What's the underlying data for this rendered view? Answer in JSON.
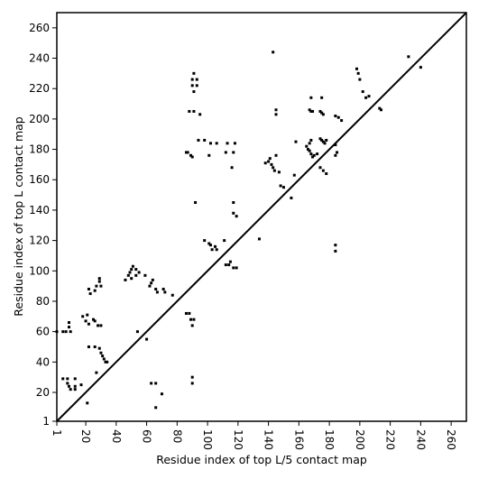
{
  "chart_data": {
    "type": "scatter",
    "title": "",
    "xlabel": "Residue index of top L/5 contact map",
    "ylabel": "Residue index of top L contact map",
    "xlim": [
      1,
      270
    ],
    "ylim": [
      1,
      270
    ],
    "x_ticks": [
      1,
      20,
      40,
      60,
      80,
      100,
      120,
      140,
      160,
      180,
      200,
      220,
      240,
      260
    ],
    "y_ticks": [
      1,
      20,
      40,
      60,
      80,
      100,
      120,
      140,
      160,
      180,
      200,
      220,
      240,
      260
    ],
    "x_tick_rotation": "vertical",
    "grid": false,
    "legend": "none",
    "diagonal": {
      "from": [
        1,
        1
      ],
      "to": [
        270,
        270
      ],
      "color": "#000000"
    },
    "marker": {
      "shape": "square",
      "color": "#000000"
    },
    "series": [
      {
        "points": [
          [
            1,
            60
          ],
          [
            5,
            60
          ],
          [
            7,
            60
          ],
          [
            9,
            63
          ],
          [
            9,
            66
          ],
          [
            10,
            60
          ],
          [
            5,
            29
          ],
          [
            8,
            29
          ],
          [
            8,
            26
          ],
          [
            9,
            24
          ],
          [
            10,
            22
          ],
          [
            13,
            24
          ],
          [
            13,
            22
          ],
          [
            17,
            25
          ],
          [
            13,
            29
          ],
          [
            18,
            70
          ],
          [
            20,
            67
          ],
          [
            21,
            71
          ],
          [
            22,
            65
          ],
          [
            25,
            68
          ],
          [
            22,
            88
          ],
          [
            23,
            85
          ],
          [
            26,
            87
          ],
          [
            27,
            90
          ],
          [
            29,
            93
          ],
          [
            29,
            95
          ],
          [
            30,
            90
          ],
          [
            22,
            50
          ],
          [
            26,
            50
          ],
          [
            26,
            67
          ],
          [
            28,
            64
          ],
          [
            27,
            33
          ],
          [
            29,
            49
          ],
          [
            30,
            46
          ],
          [
            31,
            44
          ],
          [
            32,
            42
          ],
          [
            33,
            40
          ],
          [
            34,
            40
          ],
          [
            30,
            64
          ],
          [
            21,
            13
          ],
          [
            46,
            94
          ],
          [
            48,
            97
          ],
          [
            49,
            99
          ],
          [
            50,
            101
          ],
          [
            51,
            103
          ],
          [
            50,
            95
          ],
          [
            53,
            97
          ],
          [
            55,
            99
          ],
          [
            53,
            101
          ],
          [
            54,
            60
          ],
          [
            59,
            97
          ],
          [
            62,
            90
          ],
          [
            63,
            92
          ],
          [
            64,
            94
          ],
          [
            66,
            88
          ],
          [
            67,
            86
          ],
          [
            71,
            88
          ],
          [
            72,
            86
          ],
          [
            77,
            84
          ],
          [
            60,
            55
          ],
          [
            63,
            26
          ],
          [
            66,
            26
          ],
          [
            66,
            10
          ],
          [
            70,
            19
          ],
          [
            86,
            72
          ],
          [
            88,
            72
          ],
          [
            89,
            68
          ],
          [
            91,
            68
          ],
          [
            90,
            64
          ],
          [
            92,
            145
          ],
          [
            90,
            30
          ],
          [
            90,
            26
          ],
          [
            86,
            178
          ],
          [
            87,
            178
          ],
          [
            89,
            176
          ],
          [
            90,
            175
          ],
          [
            94,
            186
          ],
          [
            98,
            186
          ],
          [
            101,
            176
          ],
          [
            102,
            184
          ],
          [
            106,
            184
          ],
          [
            112,
            178
          ],
          [
            113,
            184
          ],
          [
            117,
            178
          ],
          [
            118,
            184
          ],
          [
            90,
            226
          ],
          [
            91,
            230
          ],
          [
            93,
            226
          ],
          [
            93,
            222
          ],
          [
            91,
            218
          ],
          [
            88,
            205
          ],
          [
            91,
            205
          ],
          [
            95,
            203
          ],
          [
            90,
            222
          ],
          [
            98,
            120
          ],
          [
            101,
            118
          ],
          [
            102,
            117
          ],
          [
            103,
            114
          ],
          [
            105,
            116
          ],
          [
            106,
            114
          ],
          [
            111,
            120
          ],
          [
            112,
            104
          ],
          [
            114,
            104
          ],
          [
            117,
            102
          ],
          [
            119,
            102
          ],
          [
            115,
            106
          ],
          [
            117,
            145
          ],
          [
            117,
            138
          ],
          [
            119,
            136
          ],
          [
            116,
            168
          ],
          [
            134,
            121
          ],
          [
            138,
            171
          ],
          [
            140,
            172
          ],
          [
            141,
            174
          ],
          [
            142,
            170
          ],
          [
            143,
            168
          ],
          [
            144,
            166
          ],
          [
            145,
            176
          ],
          [
            147,
            165
          ],
          [
            148,
            156
          ],
          [
            150,
            155
          ],
          [
            155,
            148
          ],
          [
            143,
            244
          ],
          [
            145,
            206
          ],
          [
            145,
            203
          ],
          [
            158,
            185
          ],
          [
            157,
            163
          ],
          [
            165,
            182
          ],
          [
            166,
            180
          ],
          [
            167,
            179
          ],
          [
            168,
            177
          ],
          [
            169,
            175
          ],
          [
            170,
            176
          ],
          [
            172,
            177
          ],
          [
            167,
            184
          ],
          [
            168,
            186
          ],
          [
            167,
            206
          ],
          [
            168,
            205
          ],
          [
            169,
            205
          ],
          [
            168,
            214
          ],
          [
            174,
            205
          ],
          [
            175,
            204
          ],
          [
            176,
            203
          ],
          [
            175,
            214
          ],
          [
            174,
            187
          ],
          [
            175,
            186
          ],
          [
            176,
            185
          ],
          [
            177,
            184
          ],
          [
            178,
            186
          ],
          [
            174,
            168
          ],
          [
            176,
            166
          ],
          [
            178,
            164
          ],
          [
            184,
            176
          ],
          [
            185,
            178
          ],
          [
            184,
            183
          ],
          [
            184,
            202
          ],
          [
            186,
            201
          ],
          [
            188,
            199
          ],
          [
            184,
            117
          ],
          [
            184,
            113
          ],
          [
            198,
            233
          ],
          [
            199,
            230
          ],
          [
            200,
            226
          ],
          [
            202,
            218
          ],
          [
            204,
            214
          ],
          [
            206,
            215
          ],
          [
            213,
            207
          ],
          [
            214,
            206
          ],
          [
            232,
            241
          ],
          [
            240,
            234
          ]
        ]
      }
    ]
  }
}
